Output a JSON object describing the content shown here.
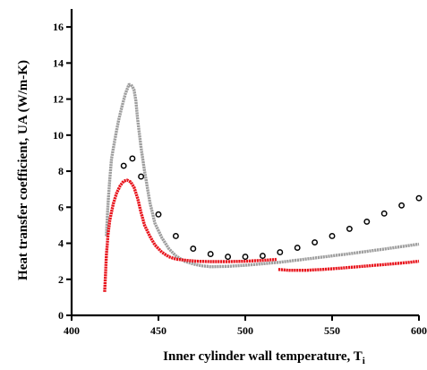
{
  "chart_data": {
    "type": "scatter",
    "title": "",
    "xlabel": "Inner cylinder wall temperature, T",
    "xlabel_subscript": "i",
    "ylabel": "Heat transfer coefficient, UA (W/m-K)",
    "xlim": [
      400,
      600
    ],
    "ylim": [
      0,
      17
    ],
    "x_ticks": [
      400,
      450,
      500,
      550,
      600
    ],
    "y_ticks": [
      0,
      2,
      4,
      6,
      8,
      10,
      12,
      14,
      16
    ],
    "grid": false,
    "legend": "none",
    "series": [
      {
        "style": "dense-line",
        "color": "#9e9e9e",
        "points": [
          [
            420,
            4.4
          ],
          [
            421,
            6.2
          ],
          [
            422,
            7.6
          ],
          [
            423,
            8.7
          ],
          [
            425,
            9.8
          ],
          [
            427,
            10.8
          ],
          [
            429,
            11.6
          ],
          [
            431,
            12.3
          ],
          [
            433,
            12.8
          ],
          [
            434,
            12.8
          ],
          [
            435,
            12.7
          ],
          [
            436,
            12.5
          ],
          [
            437,
            11.9
          ],
          [
            438,
            10.9
          ],
          [
            440,
            9.3
          ],
          [
            442,
            8.0
          ],
          [
            445,
            6.3
          ],
          [
            448,
            5.1
          ],
          [
            452,
            4.3
          ],
          [
            456,
            3.7
          ],
          [
            460,
            3.3
          ],
          [
            465,
            3.0
          ],
          [
            470,
            2.85
          ],
          [
            475,
            2.75
          ],
          [
            480,
            2.7
          ],
          [
            490,
            2.72
          ],
          [
            500,
            2.78
          ],
          [
            520,
            2.95
          ],
          [
            540,
            3.18
          ],
          [
            560,
            3.42
          ],
          [
            580,
            3.68
          ],
          [
            600,
            3.95
          ]
        ]
      },
      {
        "style": "dense-line",
        "color": "#e8141c",
        "points": [
          [
            419,
            1.3
          ],
          [
            419.5,
            2.2
          ],
          [
            420,
            3.3
          ],
          [
            421,
            4.5
          ],
          [
            422,
            5.3
          ],
          [
            424,
            6.2
          ],
          [
            426,
            6.8
          ],
          [
            428,
            7.2
          ],
          [
            430,
            7.45
          ],
          [
            432,
            7.5
          ],
          [
            434,
            7.4
          ],
          [
            436,
            7.1
          ],
          [
            438,
            6.5
          ],
          [
            440,
            5.7
          ],
          [
            442,
            5.0
          ],
          [
            445,
            4.4
          ],
          [
            448,
            3.9
          ],
          [
            452,
            3.5
          ],
          [
            456,
            3.25
          ],
          [
            460,
            3.12
          ],
          [
            466,
            3.05
          ],
          [
            472,
            3.0
          ],
          [
            480,
            2.98
          ],
          [
            490,
            2.98
          ],
          [
            500,
            3.0
          ],
          [
            510,
            3.05
          ],
          [
            518,
            3.1
          ]
        ]
      },
      {
        "style": "dense-line",
        "color": "#e8141c",
        "points": [
          [
            519,
            2.55
          ],
          [
            525,
            2.5
          ],
          [
            535,
            2.5
          ],
          [
            545,
            2.55
          ],
          [
            555,
            2.62
          ],
          [
            565,
            2.7
          ],
          [
            575,
            2.78
          ],
          [
            585,
            2.86
          ],
          [
            595,
            2.95
          ],
          [
            600,
            3.0
          ]
        ]
      },
      {
        "style": "open-circles",
        "color": "#000000",
        "points": [
          [
            430,
            8.3
          ],
          [
            435,
            8.7
          ],
          [
            440,
            7.7
          ],
          [
            450,
            5.6
          ],
          [
            460,
            4.4
          ],
          [
            470,
            3.7
          ],
          [
            480,
            3.4
          ],
          [
            490,
            3.25
          ],
          [
            500,
            3.25
          ],
          [
            510,
            3.3
          ],
          [
            520,
            3.5
          ],
          [
            530,
            3.75
          ],
          [
            540,
            4.05
          ],
          [
            550,
            4.4
          ],
          [
            560,
            4.8
          ],
          [
            570,
            5.2
          ],
          [
            580,
            5.65
          ],
          [
            590,
            6.1
          ],
          [
            600,
            6.5
          ]
        ]
      }
    ]
  }
}
